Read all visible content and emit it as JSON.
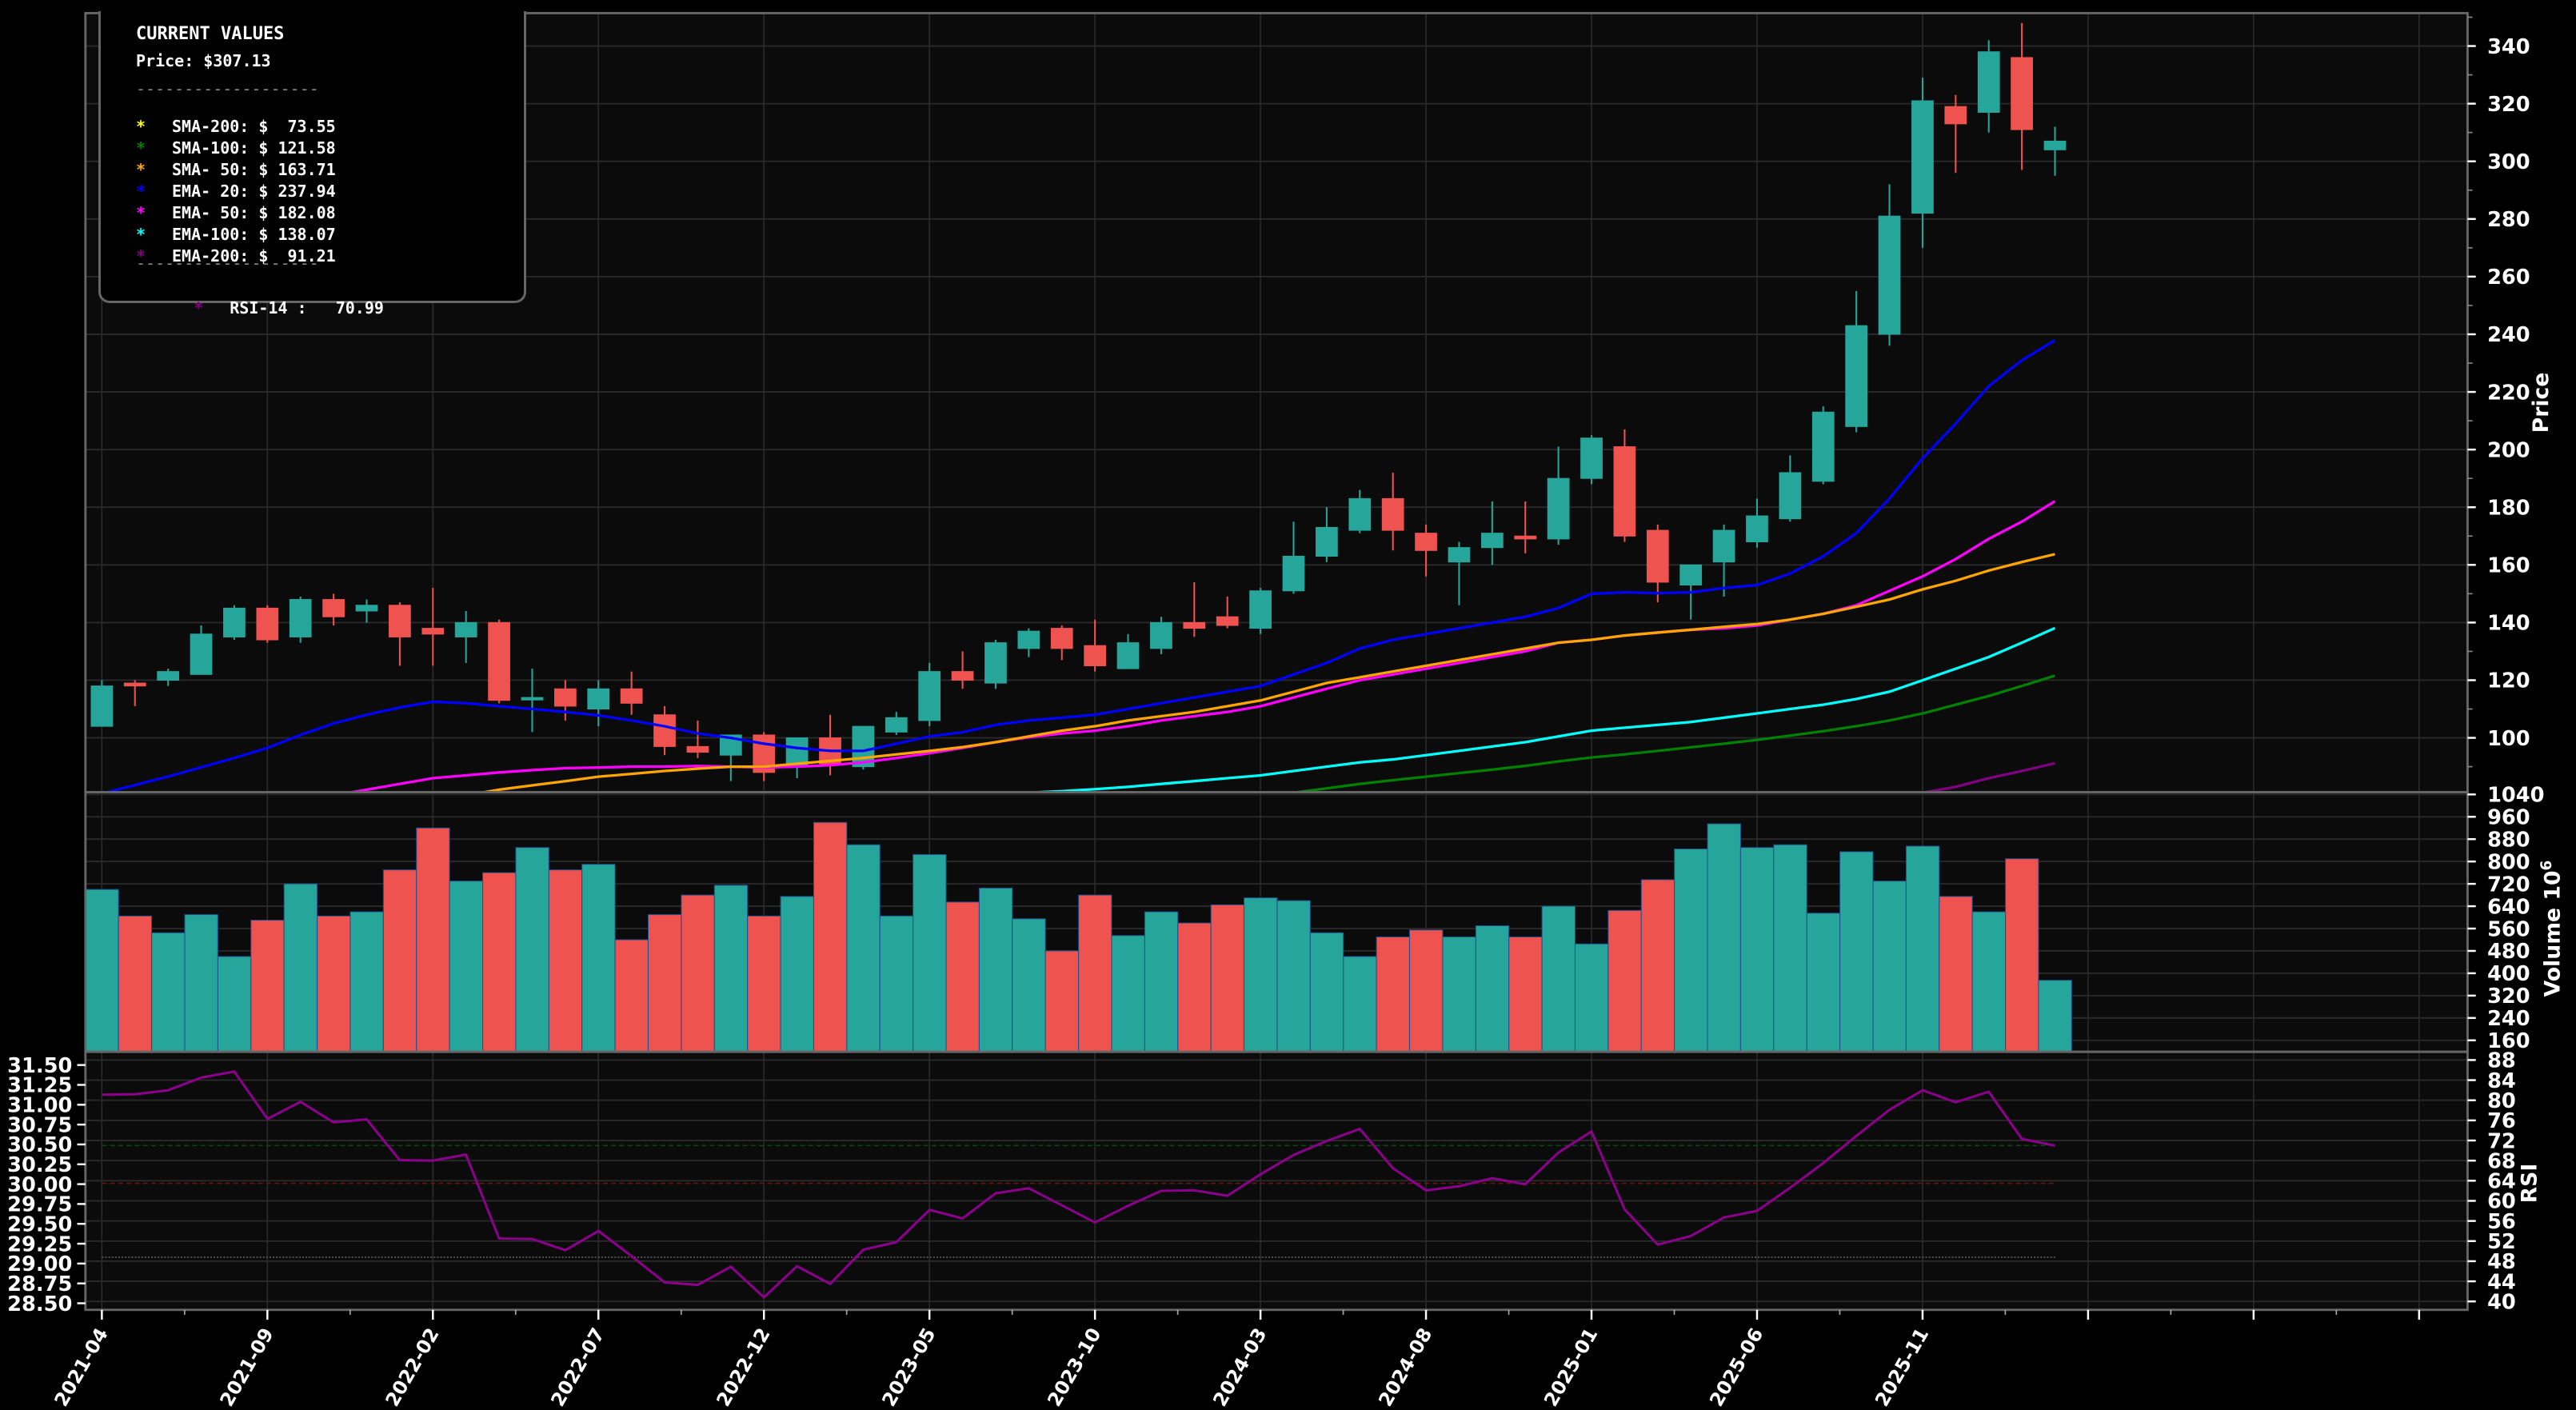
{
  "chart_data": {
    "type": "candlestick",
    "title": "",
    "x_tick_labels": [
      "2021-04",
      "2021-09",
      "2022-02",
      "2022-07",
      "2022-12",
      "2023-05",
      "2023-10",
      "2024-03",
      "2024-08",
      "2025-01",
      "2025-06",
      "2025-11"
    ],
    "months": [
      "2021-04",
      "2021-05",
      "2021-06",
      "2021-07",
      "2021-08",
      "2021-09",
      "2021-10",
      "2021-11",
      "2021-12",
      "2022-01",
      "2022-02",
      "2022-03",
      "2022-04",
      "2022-05",
      "2022-06",
      "2022-07",
      "2022-08",
      "2022-09",
      "2022-10",
      "2022-11",
      "2022-12",
      "2023-01",
      "2023-02",
      "2023-03",
      "2023-04",
      "2023-05",
      "2023-06",
      "2023-07",
      "2023-08",
      "2023-09",
      "2023-10",
      "2023-11",
      "2023-12",
      "2024-01",
      "2024-02",
      "2024-03",
      "2024-04",
      "2024-05",
      "2024-06",
      "2024-07",
      "2024-08",
      "2024-09",
      "2024-10",
      "2024-11",
      "2024-12",
      "2025-01",
      "2025-02",
      "2025-03",
      "2025-04",
      "2025-05",
      "2025-06",
      "2025-07",
      "2025-08",
      "2025-09",
      "2025-10",
      "2025-11",
      "2025-12",
      "2026-01",
      "2026-02",
      "2026-03"
    ],
    "ohlc": [
      [
        104,
        120,
        104,
        118
      ],
      [
        119,
        120,
        111,
        118
      ],
      [
        120,
        124,
        118,
        123
      ],
      [
        122,
        139,
        122,
        136
      ],
      [
        135,
        146,
        134,
        145
      ],
      [
        145,
        146,
        133,
        134
      ],
      [
        135,
        149,
        133,
        148
      ],
      [
        148,
        150,
        139,
        142
      ],
      [
        144,
        148,
        140,
        146
      ],
      [
        146,
        147,
        125,
        135
      ],
      [
        138,
        152,
        125,
        136
      ],
      [
        135,
        144,
        126,
        140
      ],
      [
        140,
        141,
        112,
        113
      ],
      [
        114,
        124,
        102,
        114
      ],
      [
        117,
        120,
        106,
        111
      ],
      [
        110,
        120,
        104,
        117
      ],
      [
        117,
        123,
        108,
        112
      ],
      [
        108,
        111,
        94,
        97
      ],
      [
        97,
        106,
        93,
        95
      ],
      [
        94,
        101,
        85,
        101
      ],
      [
        101,
        102,
        85,
        88
      ],
      [
        90,
        100,
        86,
        100
      ],
      [
        100,
        108,
        87,
        91
      ],
      [
        90,
        104,
        89,
        104
      ],
      [
        102,
        109,
        101,
        107
      ],
      [
        106,
        126,
        104,
        123
      ],
      [
        123,
        130,
        117,
        120
      ],
      [
        119,
        134,
        117,
        133
      ],
      [
        131,
        138,
        128,
        137
      ],
      [
        138,
        139,
        127,
        131
      ],
      [
        132,
        141,
        123,
        125
      ],
      [
        124,
        136,
        126,
        133
      ],
      [
        131,
        142,
        129,
        140
      ],
      [
        140,
        154,
        135,
        138
      ],
      [
        142,
        149,
        138,
        139
      ],
      [
        138,
        152,
        136,
        151
      ],
      [
        151,
        175,
        150,
        163
      ],
      [
        163,
        180,
        161,
        173
      ],
      [
        172,
        186,
        171,
        183
      ],
      [
        183,
        192,
        165,
        172
      ],
      [
        171,
        174,
        156,
        165
      ],
      [
        161,
        168,
        146,
        166
      ],
      [
        166,
        182,
        160,
        171
      ],
      [
        170,
        182,
        164,
        169
      ],
      [
        169,
        201,
        167,
        190
      ],
      [
        190,
        205,
        188,
        204
      ],
      [
        201,
        207,
        168,
        170
      ],
      [
        172,
        174,
        147,
        154
      ],
      [
        153,
        159,
        141,
        160
      ],
      [
        161,
        174,
        149,
        172
      ],
      [
        168,
        183,
        166,
        177
      ],
      [
        176,
        198,
        175,
        192
      ],
      [
        189,
        215,
        188,
        213
      ],
      [
        208,
        255,
        206,
        243
      ],
      [
        240,
        292,
        236,
        281
      ],
      [
        282,
        329,
        270,
        321
      ],
      [
        319,
        323,
        296,
        313
      ],
      [
        317,
        342,
        310,
        338
      ],
      [
        336,
        348,
        297,
        311
      ],
      [
        304,
        312,
        295,
        307
      ]
    ],
    "volume": [
      700,
      605,
      545,
      610,
      460,
      590,
      720,
      605,
      620,
      770,
      920,
      730,
      760,
      850,
      770,
      790,
      520,
      610,
      680,
      715,
      605,
      675,
      940,
      860,
      605,
      825,
      655,
      705,
      595,
      480,
      680,
      535,
      620,
      580,
      645,
      670,
      660,
      545,
      460,
      530,
      555,
      530,
      570,
      530,
      640,
      505,
      625,
      735,
      845,
      935,
      850,
      860,
      615,
      835,
      730,
      855,
      675,
      620,
      810,
      375
    ],
    "volume_unit": "10^6",
    "rsi": [
      81.1,
      81.2,
      82,
      84.5,
      85.7,
      76.3,
      79.7,
      75.6,
      76.2,
      68.1,
      68,
      69.2,
      52.5,
      52.4,
      50.2,
      54,
      49,
      43.8,
      43.3,
      46.9,
      40.8,
      47,
      43.5,
      50.3,
      51.8,
      58.2,
      56.5,
      61.5,
      62.5,
      59.1,
      55.7,
      59,
      62,
      62.1,
      61,
      65.3,
      69.1,
      71.9,
      74.3,
      66.5,
      62.1,
      62.9,
      64.5,
      63.3,
      69.6,
      73.8,
      58.3,
      51.3,
      53,
      56.7,
      58,
      62.6,
      67.5,
      72.9,
      78.1,
      82,
      79.6,
      81.7,
      72.3,
      70.99
    ],
    "rsi_overbought": 70,
    "rsi_oversold": 30,
    "series": [
      {
        "name": "EMA-20",
        "color": "#0000ff",
        "values": [
          80.7,
          83.6,
          86.6,
          89.8,
          93,
          96.5,
          101,
          105,
          108,
          110.5,
          112.5,
          112,
          111,
          110,
          109,
          107.8,
          106,
          104,
          101.5,
          100,
          98,
          96.5,
          95.5,
          95.5,
          98,
          100.5,
          102,
          104.5,
          106,
          107,
          108,
          110,
          112,
          114,
          116,
          118,
          122,
          126,
          131,
          134,
          136,
          138,
          140,
          142,
          145,
          150,
          150.5,
          150.2,
          150.5,
          152,
          153,
          157,
          163,
          171,
          183,
          197,
          209,
          222,
          231,
          237.9
        ]
      },
      {
        "name": "EMA-50",
        "color": "#ff00ff",
        "values": [
          null,
          null,
          null,
          null,
          null,
          null,
          78,
          80,
          82,
          84,
          86,
          87,
          88,
          88.8,
          89.5,
          89.7,
          90,
          90,
          90.2,
          90,
          89.8,
          90,
          90.5,
          91.5,
          93,
          94.7,
          96.5,
          98.5,
          100.2,
          101.5,
          102.5,
          104,
          106,
          107.5,
          109,
          111,
          114,
          117,
          120,
          122,
          124,
          126,
          128,
          130,
          133,
          134,
          135.5,
          136.5,
          137.5,
          138,
          139,
          141,
          143,
          146,
          151,
          156,
          162,
          169,
          175,
          182.08
        ]
      },
      {
        "name": "SMA-50",
        "color": "#ffa500",
        "values": [
          null,
          null,
          null,
          null,
          null,
          null,
          null,
          null,
          null,
          75,
          78,
          80,
          82,
          83.5,
          85,
          86.5,
          87.5,
          88.5,
          89.3,
          90,
          90,
          91,
          92,
          93,
          94.3,
          95.5,
          96.8,
          98.5,
          100.5,
          102.5,
          104,
          106,
          107.5,
          109,
          111,
          113,
          116,
          119,
          121,
          123,
          125,
          127,
          129,
          131,
          133,
          134,
          135.5,
          136.5,
          137.5,
          138.5,
          139.5,
          141,
          143,
          145.5,
          148,
          151.5,
          154.5,
          158,
          161,
          163.71
        ]
      },
      {
        "name": "EMA-100",
        "color": "#00ffff",
        "values": [
          null,
          null,
          null,
          null,
          null,
          null,
          null,
          null,
          null,
          null,
          null,
          null,
          null,
          null,
          null,
          null,
          null,
          null,
          null,
          null,
          null,
          null,
          null,
          null,
          null,
          null,
          null,
          null,
          81,
          81.5,
          82.2,
          83,
          84,
          85,
          86,
          87,
          88.5,
          90,
          91.5,
          92.5,
          94,
          95.5,
          97,
          98.5,
          100.5,
          102.5,
          103.5,
          104.5,
          105.5,
          107,
          108.5,
          110,
          111.5,
          113.5,
          116,
          120,
          124,
          128,
          133,
          138.07
        ]
      },
      {
        "name": "SMA-100",
        "color": "#008000",
        "values": [
          null,
          null,
          null,
          null,
          null,
          null,
          null,
          null,
          null,
          null,
          null,
          null,
          null,
          null,
          null,
          null,
          null,
          null,
          null,
          null,
          null,
          null,
          null,
          null,
          null,
          null,
          null,
          null,
          null,
          null,
          null,
          null,
          null,
          null,
          null,
          null,
          81,
          82.5,
          84,
          85.3,
          86.5,
          87.8,
          89,
          90.3,
          91.8,
          93.2,
          94.3,
          95.5,
          96.7,
          98,
          99.3,
          100.8,
          102.3,
          104,
          106,
          108.5,
          111.5,
          114.5,
          118,
          121.58
        ]
      },
      {
        "name": "EMA-200",
        "color": "#800080",
        "values": [
          null,
          null,
          null,
          null,
          null,
          null,
          null,
          null,
          null,
          null,
          null,
          null,
          null,
          null,
          null,
          null,
          null,
          null,
          null,
          null,
          null,
          null,
          null,
          null,
          null,
          null,
          null,
          null,
          null,
          null,
          null,
          null,
          null,
          null,
          null,
          null,
          null,
          null,
          null,
          null,
          null,
          null,
          null,
          null,
          null,
          null,
          null,
          null,
          null,
          null,
          null,
          null,
          null,
          null,
          null,
          81,
          83,
          86,
          88.5,
          91.21
        ]
      }
    ],
    "price_axis": {
      "label": "Price",
      "ticks": [
        100,
        120,
        140,
        160,
        180,
        200,
        220,
        240,
        260,
        280,
        300,
        320,
        340
      ],
      "ylim": [
        81,
        346
      ]
    },
    "volume_axis": {
      "label": "Volume  10",
      "label_sup": "6",
      "ticks": [
        160,
        240,
        320,
        400,
        480,
        560,
        640,
        720,
        800,
        880,
        960,
        1040
      ]
    },
    "rsi_axis": {
      "label": "RSI",
      "ticks": [
        40,
        44,
        48,
        52,
        56,
        60,
        64,
        68,
        72,
        76,
        80,
        84,
        88
      ]
    },
    "rsi_left_axis": {
      "ticks": [
        "28.50",
        "28.75",
        "29.00",
        "29.25",
        "29.50",
        "29.75",
        "30.00",
        "30.25",
        "30.50",
        "30.75",
        "31.00",
        "31.25",
        "31.50"
      ]
    },
    "colors": {
      "up": "#26a69a",
      "down": "#ef5350",
      "background": "#000000",
      "plot_bg": "#0b0b0b",
      "grid": "#2a2a2a",
      "frame": "#666666",
      "rsi": "#8b008b"
    }
  },
  "legend": {
    "title": "CURRENT VALUES",
    "price": "Price: $307.13",
    "separator": "-------------------",
    "items": [
      {
        "star": "*",
        "color": "#ffff00",
        "text": "SMA-200: $  73.55"
      },
      {
        "star": "*",
        "color": "#008000",
        "text": "SMA-100: $ 121.58"
      },
      {
        "star": "*",
        "color": "#ffa500",
        "text": "SMA- 50: $ 163.71"
      },
      {
        "star": "*",
        "color": "#0000ff",
        "text": "EMA- 20: $ 237.94"
      },
      {
        "star": "*",
        "color": "#ff00ff",
        "text": "EMA- 50: $ 182.08"
      },
      {
        "star": "*",
        "color": "#00ffff",
        "text": "EMA-100: $ 138.07"
      },
      {
        "star": "*",
        "color": "#800080",
        "text": "EMA-200: $  91.21"
      }
    ],
    "rsi": {
      "star": "*",
      "color": "#800080",
      "text": "RSI-14 :   70.99"
    }
  }
}
